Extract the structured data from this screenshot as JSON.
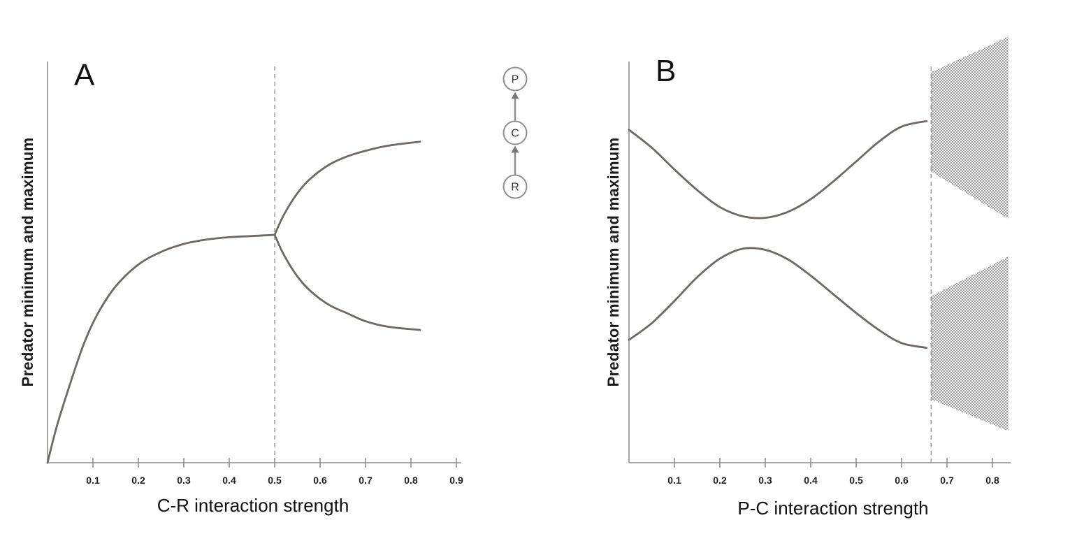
{
  "colors": {
    "curve": "#6e6965",
    "axis": "#8f8f8f",
    "dashed": "#9c9c9c",
    "stipple": "#4f4f4f",
    "text": "#111111"
  },
  "food_chain": {
    "nodes": [
      {
        "label": "P"
      },
      {
        "label": "C"
      },
      {
        "label": "R"
      }
    ],
    "links": [
      {
        "from": "R",
        "to": "C"
      },
      {
        "from": "C",
        "to": "P"
      }
    ]
  },
  "chart_data": [
    {
      "type": "line",
      "panel_label": "A",
      "xlabel": "C-R interaction strength",
      "ylabel": "Predator minimum and maximum",
      "xlim": [
        0,
        0.95
      ],
      "ylim": [
        0,
        1
      ],
      "y_values_normalized": true,
      "x_ticks": [
        0.1,
        0.2,
        0.3,
        0.4,
        0.5,
        0.6,
        0.7,
        0.8,
        0.9
      ],
      "bifurcation_x": 0.5,
      "grid": false,
      "legend": false,
      "annotations": [
        "dashed vertical line at x = 0.5 where the saturating equilibrium curve splits into cycle maximum and minimum branches"
      ],
      "series": [
        {
          "name": "stable equilibrium",
          "x": [
            0,
            0.02,
            0.05,
            0.08,
            0.11,
            0.15,
            0.2,
            0.25,
            0.3,
            0.35,
            0.4,
            0.45,
            0.5
          ],
          "y": [
            0,
            0.09,
            0.2,
            0.3,
            0.375,
            0.445,
            0.5,
            0.532,
            0.552,
            0.563,
            0.569,
            0.572,
            0.575
          ]
        },
        {
          "name": "predator maximum",
          "x": [
            0.5,
            0.52,
            0.55,
            0.58,
            0.62,
            0.66,
            0.7,
            0.75,
            0.82
          ],
          "y": [
            0.575,
            0.625,
            0.68,
            0.718,
            0.752,
            0.773,
            0.787,
            0.8,
            0.81
          ]
        },
        {
          "name": "predator minimum",
          "x": [
            0.5,
            0.52,
            0.55,
            0.58,
            0.62,
            0.66,
            0.7,
            0.75,
            0.82
          ],
          "y": [
            0.575,
            0.525,
            0.47,
            0.432,
            0.398,
            0.377,
            0.357,
            0.343,
            0.335
          ]
        }
      ],
      "stipple_regions": []
    },
    {
      "type": "line",
      "panel_label": "B",
      "xlabel": "P-C interaction strength",
      "ylabel": "Predator minimum and maximum",
      "xlim": [
        0,
        0.84
      ],
      "ylim": [
        0,
        1
      ],
      "y_values_normalized": true,
      "x_ticks": [
        0.1,
        0.2,
        0.3,
        0.4,
        0.5,
        0.6,
        0.7,
        0.8
      ],
      "bifurcation_x": 0.665,
      "grid": false,
      "legend": false,
      "annotations": [
        "dashed vertical line at x = 0.665; stippled wedges to its right show widening chaotic range of predator maxima and minima"
      ],
      "series": [
        {
          "name": "predator maximum",
          "x": [
            0,
            0.05,
            0.1,
            0.15,
            0.2,
            0.25,
            0.3,
            0.35,
            0.4,
            0.45,
            0.5,
            0.55,
            0.6,
            0.655
          ],
          "y": [
            0.84,
            0.795,
            0.74,
            0.688,
            0.645,
            0.622,
            0.618,
            0.633,
            0.665,
            0.71,
            0.76,
            0.81,
            0.848,
            0.862
          ]
        },
        {
          "name": "predator minimum",
          "x": [
            0,
            0.05,
            0.1,
            0.15,
            0.2,
            0.25,
            0.3,
            0.35,
            0.4,
            0.45,
            0.5,
            0.55,
            0.6,
            0.655
          ],
          "y": [
            0.31,
            0.352,
            0.408,
            0.468,
            0.515,
            0.54,
            0.537,
            0.513,
            0.472,
            0.425,
            0.378,
            0.335,
            0.302,
            0.29
          ]
        }
      ],
      "stipple_regions": [
        {
          "name": "chaotic maxima band",
          "points": [
            [
              0.665,
              0.735
            ],
            [
              0.665,
              0.985
            ],
            [
              0.835,
              1.075
            ],
            [
              0.835,
              0.615
            ]
          ]
        },
        {
          "name": "chaotic minima band",
          "points": [
            [
              0.665,
              0.16
            ],
            [
              0.665,
              0.42
            ],
            [
              0.835,
              0.52
            ],
            [
              0.835,
              0.08
            ]
          ]
        }
      ]
    }
  ]
}
